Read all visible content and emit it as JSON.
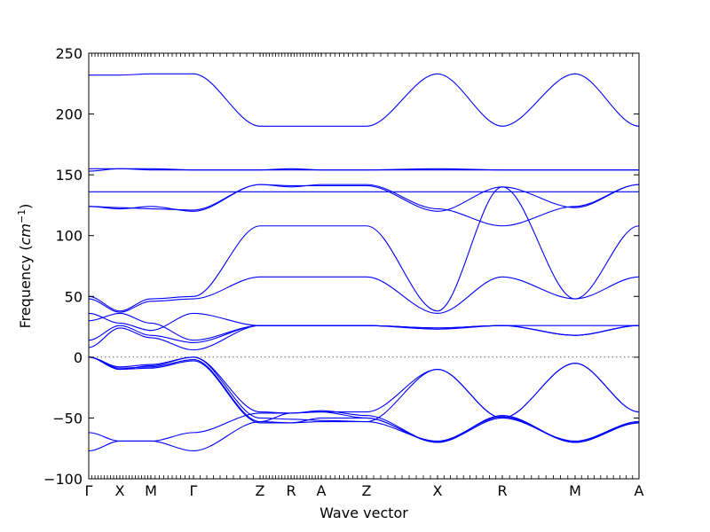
{
  "chart_data": {
    "type": "line",
    "title": "",
    "xlabel": "Wave vector",
    "ylabel": "Frequency (cm⁻¹)",
    "ylabel_parts": {
      "text": "Frequency (",
      "unit": "cm",
      "exp": "−1",
      "close": ")"
    },
    "ylim": [
      -100,
      250
    ],
    "yticks": [
      -100,
      -50,
      0,
      50,
      100,
      150,
      200,
      250
    ],
    "x_labels": [
      "Γ",
      "X",
      "M",
      "Γ",
      "Z",
      "R",
      "A",
      "Z",
      "X",
      "R",
      "M",
      "A"
    ],
    "grid": false,
    "zero_line": true,
    "line_color": "#0000ff",
    "series": [
      {
        "values": [
          232,
          232,
          233,
          233,
          190,
          190,
          190,
          190,
          233,
          190,
          233,
          190
        ]
      },
      {
        "values": [
          155,
          155,
          154,
          154,
          154,
          155,
          154,
          154,
          155,
          154,
          154,
          154
        ]
      },
      {
        "values": [
          153,
          155,
          155,
          154,
          154,
          154,
          154,
          154,
          154,
          154,
          154,
          154
        ]
      },
      {
        "values": [
          136,
          136,
          136,
          136,
          136,
          136,
          136,
          136,
          136,
          136,
          136,
          136
        ]
      },
      {
        "values": [
          124,
          122,
          124,
          120,
          142,
          140,
          142,
          142,
          122,
          108,
          124,
          142
        ]
      },
      {
        "values": [
          124,
          123,
          122,
          121,
          142,
          141,
          141,
          141,
          120,
          140,
          123,
          142
        ]
      },
      {
        "values": [
          50,
          38,
          48,
          50,
          108,
          108,
          108,
          108,
          38,
          140,
          48,
          108
        ]
      },
      {
        "values": [
          48,
          37,
          46,
          48,
          66,
          66,
          66,
          66,
          36,
          66,
          48,
          66
        ]
      },
      {
        "values": [
          36,
          28,
          22,
          36,
          26,
          26,
          26,
          26,
          24,
          26,
          26,
          26
        ]
      },
      {
        "values": [
          30,
          36,
          28,
          14,
          26,
          26,
          26,
          26,
          23,
          26,
          18,
          26
        ]
      },
      {
        "values": [
          14,
          26,
          18,
          12,
          26,
          26,
          26,
          26,
          24,
          26,
          18,
          26
        ]
      },
      {
        "values": [
          8,
          24,
          16,
          6,
          26,
          26,
          26,
          26,
          24,
          26,
          18,
          26
        ]
      },
      {
        "values": [
          0,
          -8,
          -6,
          0,
          -45,
          -46,
          -45,
          -45,
          -10,
          -50,
          -5,
          -45
        ]
      },
      {
        "values": [
          0,
          -10,
          -7,
          0,
          -50,
          -51,
          -52,
          -53,
          -10,
          -50,
          -5,
          -45
        ]
      },
      {
        "values": [
          0,
          -9,
          -8,
          -2,
          -53,
          -54,
          -50,
          -50,
          -70,
          -50,
          -69,
          -53
        ]
      },
      {
        "values": [
          0,
          -10,
          -9,
          -3,
          -54,
          -54,
          -53,
          -53,
          -69,
          -49,
          -70,
          -53
        ]
      },
      {
        "values": [
          -62,
          -69,
          -69,
          -62,
          -46,
          -46,
          -44,
          -48,
          -70,
          -48,
          -70,
          -54
        ]
      },
      {
        "values": [
          -77,
          -69,
          -69,
          -77,
          -53,
          -46,
          -45,
          -50,
          -70,
          -48,
          -70,
          -54
        ]
      }
    ]
  }
}
